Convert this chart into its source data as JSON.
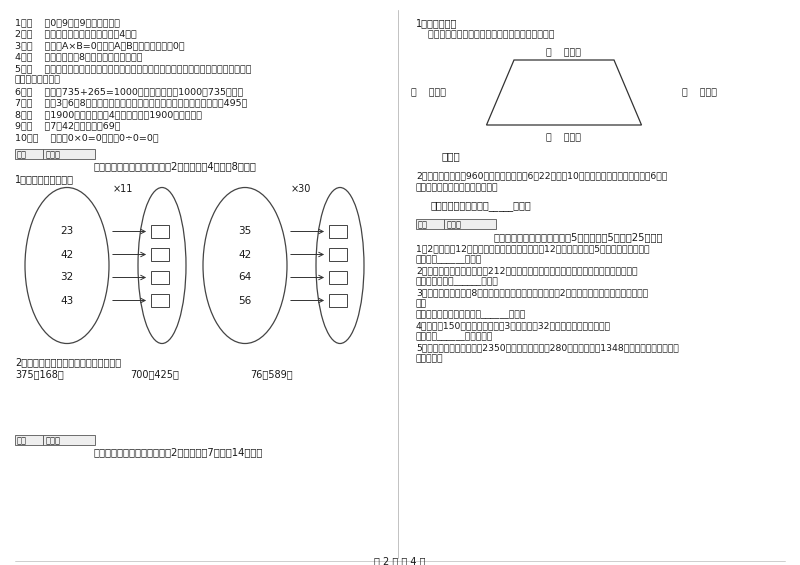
{
  "bg_color": "#ffffff",
  "page_num": "第 2 页 共 4 页",
  "col_div": 398,
  "left": {
    "items": [
      "1．（    ）0，9里有9个十分之一。",
      "2．（    ）正方形的周长是它的边长的4倍。",
      "3．（    ）如果A×B=0，那么A和B中至少有一个是0。",
      "4．（    ）一个两位乘8，和一定也是两为数。",
      "5．（    ）用同一条铁丝先围成一个最大的正方形，再围成一个最大的长方形，长方形和正",
      "方形的周长相等。",
      "6．（    ）根据735+265=1000，可以直接写出1000－735的差。",
      "7．（    ）用3，6，8这三个数字组成的最大三位数与最小三位数，它们相差495。",
      "8．（    ）1900年的年份数是4的倍数，所以1900年是闰年。",
      "9．（    ）7个42相加的和是69。",
      "10．（    ）因为0×0=0，所以0÷0=0。"
    ],
    "sec4_header": "四、看清题目，细心计算（共2小题，每题4分，共8分）。",
    "sec4_sub1": "1、算一算，填一填。",
    "oval1_nums": [
      "23",
      "42",
      "32",
      "43"
    ],
    "oval1_op": "×11",
    "oval2_nums": [
      "35",
      "42",
      "64",
      "56"
    ],
    "oval2_op": "×30",
    "sec4_sub2": "2、竖式计算，要求验算的请写出验算。",
    "calc1": "375＋168＝",
    "calc2": "700－425＝",
    "calc3": "76＋589＝",
    "sec5_header": "五、认真思考，综合能力（共2小题，每题7分，共14分）。"
  },
  "right": {
    "sec5_r_header": "1、动手操作。",
    "sec5_r_sub": "    量出每条边的长度，以毫米为单位，并计算周长。",
    "label_top": "（    ）毫米",
    "label_left": "（    ）毫米",
    "label_right": "（    ）毫米",
    "label_bottom": "（    ）毫米",
    "zhou_chang": "周长：",
    "sec5_r_q2_lines": [
      "2、甲乙两城铁路长960千米，一列客车于6月22日上午10时从甲城开往乙城，当日晚上6时到",
      "达，这列火车每小时行多少千米？"
    ],
    "answer2": "答：这列火车每小时行_____千米。",
    "sec6_header": "六、活用知识，解决问题（共5小题，每题5分，共25分）。",
    "sec6_items": [
      "1、2位老师和12位学生去游乐园玩，成人票每张12元，学生票每张5元，一共要多少钱？",
      "答：一共______元钱。",
      "2、用一根铁丝做一个边长为212厘米的正方形框架，正好用完，这根铁丝长多少厘米？",
      "答：这根铁丝长______厘米。",
      "3、一个正方形的边长8分米，另一个正方形的边长是它的2倍，另一个正方形的周长是多少分",
      "米？",
      "答：另一个正方形的周长是______分米。",
      "4、一本书150页，冬冬已经看了3天，每天看32页，还剩多少页没有看？",
      "答：还剩______页没有看。",
      "5、学校图书室原有故事书2350本，现在又买来了280本，并借出了1348本，现在图书室有故事",
      "书多少本？"
    ]
  },
  "score_box": "得分",
  "evaluator": "评卷人"
}
